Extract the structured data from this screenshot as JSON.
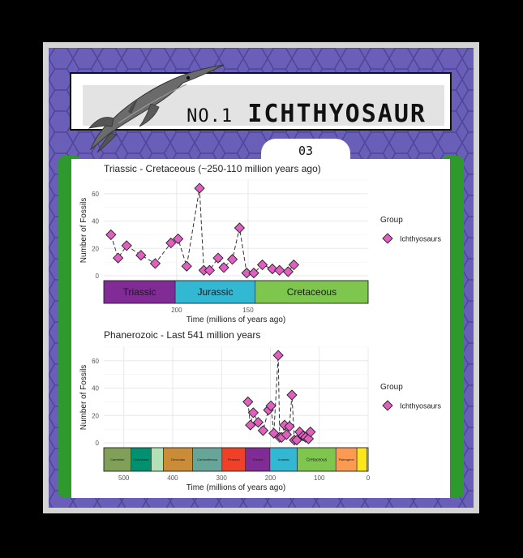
{
  "card": {
    "number_prefix": "NO.1",
    "name": "ICHTHYOSAUR",
    "card_index": "03"
  },
  "colors": {
    "background": "#000000",
    "hex_fill": "#6a5fb8",
    "hex_stroke": "#4d4596",
    "border_green": "#2e9a2e",
    "point_fill": "#e05fc0"
  },
  "chart_data": [
    {
      "type": "line",
      "title": "Triassic - Cretaceous (~250-110 million years ago)",
      "xlabel": "Time (millions of years ago)",
      "ylabel": "Number of Fossils",
      "xlim": [
        251,
        66
      ],
      "ylim": [
        0,
        70
      ],
      "x_reversed": true,
      "x_ticks": [
        "200",
        "150"
      ],
      "y_ticks": [
        "0",
        "20",
        "40",
        "60"
      ],
      "grid": true,
      "legend": {
        "title": "Group",
        "position": "right"
      },
      "series": [
        {
          "name": "Ichthyosaurs",
          "marker": "diamond",
          "line": "dashed",
          "x": [
            246,
            241,
            235,
            225,
            215,
            204,
            199,
            193,
            184,
            181,
            177,
            171,
            167,
            161,
            156,
            151,
            146,
            140,
            133,
            128,
            122,
            118
          ],
          "y": [
            30,
            13,
            22,
            15,
            9,
            24,
            27,
            7,
            64,
            4,
            4,
            13,
            6,
            12,
            35,
            2,
            2,
            8,
            5,
            4,
            3,
            8
          ]
        }
      ],
      "periods": [
        {
          "name": "Triassic",
          "start": 251,
          "end": 201,
          "color": "#812c96"
        },
        {
          "name": "Jurassic",
          "start": 201,
          "end": 145,
          "color": "#33b8d3"
        },
        {
          "name": "Cretaceous",
          "start": 145,
          "end": 66,
          "color": "#7fc64e"
        }
      ]
    },
    {
      "type": "line",
      "title": "Phanerozoic - Last 541 million years",
      "xlabel": "Time (millions of years ago)",
      "ylabel": "Number of Fossils",
      "xlim": [
        541,
        0
      ],
      "ylim": [
        0,
        70
      ],
      "x_reversed": true,
      "x_ticks": [
        "500",
        "400",
        "300",
        "200",
        "100",
        "0"
      ],
      "y_ticks": [
        "0",
        "20",
        "40",
        "60"
      ],
      "grid": true,
      "legend": {
        "title": "Group",
        "position": "right"
      },
      "series": [
        {
          "name": "Ichthyosaurs",
          "marker": "diamond",
          "line": "dashed",
          "x": [
            246,
            241,
            235,
            225,
            215,
            204,
            199,
            193,
            184,
            181,
            177,
            171,
            167,
            161,
            156,
            151,
            146,
            140,
            133,
            128,
            122,
            118
          ],
          "y": [
            30,
            13,
            22,
            15,
            9,
            24,
            27,
            7,
            64,
            4,
            4,
            13,
            6,
            12,
            35,
            2,
            2,
            8,
            5,
            4,
            3,
            8
          ]
        }
      ],
      "periods": [
        {
          "name": "Cambrian",
          "start": 541,
          "end": 485,
          "color": "#7fa056"
        },
        {
          "name": "Ordovician",
          "start": 485,
          "end": 444,
          "color": "#009270"
        },
        {
          "name": "",
          "start": 444,
          "end": 419,
          "color": "#b3e1b6"
        },
        {
          "name": "Devonian",
          "start": 419,
          "end": 359,
          "color": "#cb8c37"
        },
        {
          "name": "Carboniferous",
          "start": 359,
          "end": 299,
          "color": "#67a599"
        },
        {
          "name": "Permian",
          "start": 299,
          "end": 251,
          "color": "#f04028"
        },
        {
          "name": "Triassic",
          "start": 251,
          "end": 201,
          "color": "#812c96"
        },
        {
          "name": "Jurassic",
          "start": 201,
          "end": 145,
          "color": "#33b8d3"
        },
        {
          "name": "Cretaceous",
          "start": 145,
          "end": 66,
          "color": "#7fc64e"
        },
        {
          "name": "Paleogene",
          "start": 66,
          "end": 23,
          "color": "#fd9a52"
        },
        {
          "name": "",
          "start": 23,
          "end": 2.6,
          "color": "#ffe619"
        },
        {
          "name": "",
          "start": 2.6,
          "end": 0,
          "color": "#f9f97f"
        }
      ]
    }
  ]
}
